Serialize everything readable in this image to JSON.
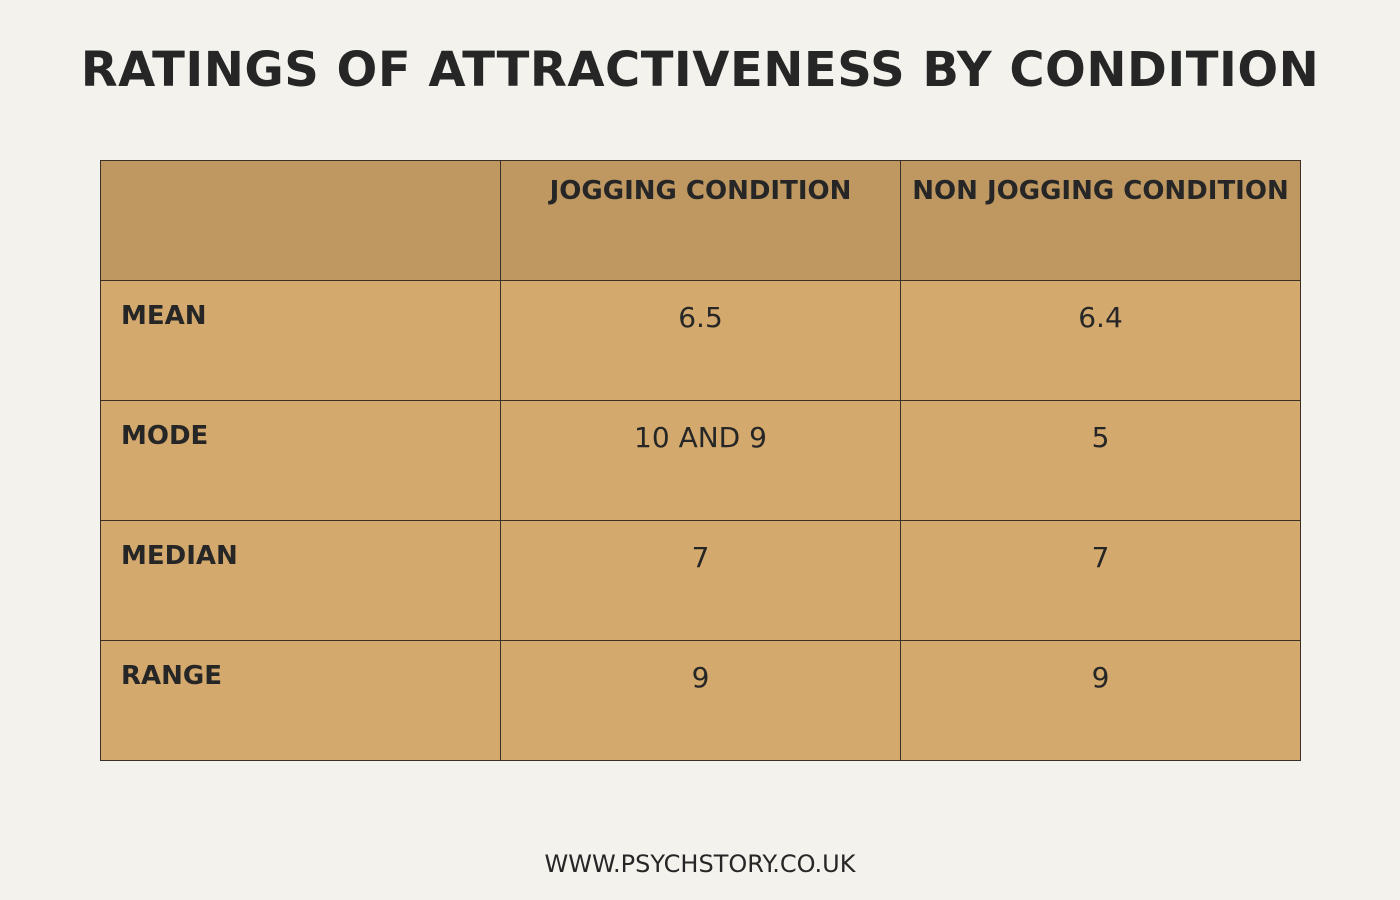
{
  "title": "RATINGS OF ATTRACTIVENESS BY CONDITION",
  "table": {
    "header": [
      "JOGGING CONDITION",
      "NON JOGGING CONDITION"
    ],
    "rows": [
      [
        "MEAN",
        "6.5",
        "6.4"
      ],
      [
        "MODE",
        "10 AND 9",
        "5"
      ],
      [
        "MEDIAN",
        "7",
        "7"
      ],
      [
        "RANGE",
        "9",
        "9"
      ]
    ]
  },
  "footer": "WWW.PSYCHSTORY.CO.UK"
}
